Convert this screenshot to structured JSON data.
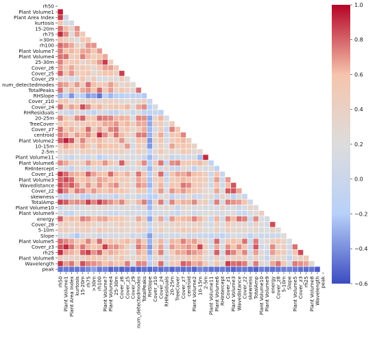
{
  "chart_data": {
    "type": "heatmap",
    "mask": "upper-triangle",
    "variables": [
      "rh50",
      "Plant Volume1",
      "Plant Area Index",
      "kurtosis",
      "15-20m",
      "rh75",
      ">30m",
      "rh100",
      "Plant Volume7",
      "Plant Volume4",
      "25-30m",
      "Cover_z6",
      "Cover_z5",
      "Cover_z9",
      "num_detectedmodes",
      "TotalPeaks",
      "RHSlope",
      "Cover_z10",
      "Cover_z4",
      "RHResiduals",
      "20-25m",
      "TreeCover",
      "Cover_z7",
      "centroid",
      "Plant Volume2",
      "10-15m",
      "2-5m",
      "Plant Volume11",
      "Plant Volume6",
      "RHIntercept",
      "Cover_z1",
      "Plant Volume3",
      "Wavedistance",
      "Cover_z2",
      "skewness",
      "TotalAmp",
      "Plant Volume10",
      "Plant Volume9",
      "energy",
      "Cover_z8",
      "5-10m",
      "Slope",
      "Plant Volume5",
      "Cover_z3",
      "rh25",
      "Plant Volume8",
      "Wavelength",
      "peak"
    ],
    "colorbar": {
      "min": -0.6,
      "max": 1.0,
      "ticks": [
        "1.0",
        "0.8",
        "0.6",
        "0.4",
        "0.2",
        "0.0",
        "−0.2",
        "−0.4",
        "−0.6"
      ],
      "tick_values": [
        1.0,
        0.8,
        0.6,
        0.4,
        0.2,
        0.0,
        -0.2,
        -0.4,
        -0.6
      ],
      "colormap": "coolwarm",
      "colors": [
        "#3b4cc0",
        "#b8d0f9",
        "#dddcdc",
        "#f5c4ac",
        "#b40426"
      ]
    },
    "rows": [
      [],
      [
        0.94
      ],
      [
        0.88,
        0.08
      ],
      [
        0.58,
        0.12,
        0.1
      ],
      [
        0.78,
        0.62,
        0.36,
        0.71
      ],
      [
        0.91,
        0.72,
        0.25,
        0.68,
        0.48
      ],
      [
        0.61,
        0.43,
        0.34,
        0.2,
        0.54,
        0.56
      ],
      [
        0.79,
        0.73,
        0.66,
        0.39,
        0.33,
        0.7,
        0.7
      ],
      [
        0.75,
        0.59,
        0.63,
        0.51,
        0.66,
        0.67,
        0.55,
        0.69
      ],
      [
        0.77,
        0.77,
        0.48,
        0.51,
        0.74,
        0.62,
        0.45,
        0.58,
        0.66
      ],
      [
        0.74,
        0.57,
        0.48,
        0.55,
        0.31,
        0.43,
        0.56,
        0.69,
        0.88,
        0.42
      ],
      [
        0.68,
        0.48,
        0.66,
        0.47,
        0.55,
        0.45,
        0.32,
        0.52,
        0.67,
        0.67,
        0.51
      ],
      [
        0.81,
        0.53,
        0.7,
        0.48,
        0.49,
        0.56,
        0.3,
        0.41,
        0.6,
        0.58,
        0.44,
        0.88
      ],
      [
        0.25,
        0.21,
        0.08,
        0.13,
        0.57,
        0.26,
        0.49,
        0.16,
        0.13,
        0.28,
        0.15,
        0.46,
        0.25
      ],
      [
        0.71,
        0.67,
        0.48,
        0.69,
        0.45,
        0.78,
        0.61,
        0.48,
        0.53,
        0.68,
        0.53,
        0.28,
        0.44,
        0.21
      ],
      [
        0.77,
        0.32,
        0.63,
        0.41,
        0.65,
        0.7,
        0.58,
        0.79,
        0.49,
        0.68,
        0.39,
        0.57,
        0.4,
        0.3,
        0.78
      ],
      [
        -0.3,
        -0.12,
        -0.38,
        -0.11,
        -0.21,
        -0.36,
        -0.32,
        -0.48,
        -0.15,
        -0.28,
        -0.19,
        -0.18,
        -0.09,
        -0.12,
        -0.12,
        -0.22
      ],
      [
        0.53,
        0.56,
        0.23,
        0.4,
        0.32,
        0.38,
        0.42,
        0.34,
        0.39,
        0.42,
        0.36,
        0.3,
        0.22,
        0.28,
        0.27,
        0.4,
        -0.02
      ],
      [
        0.79,
        0.47,
        0.67,
        0.61,
        0.84,
        0.71,
        0.49,
        0.63,
        0.41,
        0.52,
        0.57,
        0.47,
        0.63,
        0.2,
        0.66,
        0.72,
        -0.16,
        0.12
      ],
      [
        0.14,
        0.06,
        -0.08,
        0.27,
        0.11,
        0.02,
        -0.12,
        0.11,
        0.09,
        -0.07,
        -0.11,
        0.15,
        0.15,
        0.0,
        0.17,
        -0.1,
        -0.11,
        -0.02,
        -0.18
      ],
      [
        0.73,
        0.54,
        0.42,
        0.72,
        0.8,
        0.57,
        0.59,
        0.78,
        0.74,
        0.73,
        0.63,
        0.64,
        0.63,
        0.15,
        0.73,
        0.71,
        -0.33,
        0.33,
        0.63,
        0.12
      ],
      [
        0.5,
        0.59,
        0.49,
        0.43,
        0.44,
        0.53,
        0.53,
        0.51,
        0.66,
        0.65,
        0.7,
        0.55,
        0.63,
        0.43,
        0.66,
        0.65,
        -0.32,
        0.41,
        0.51,
        0.18,
        0.47
      ],
      [
        0.77,
        0.54,
        0.64,
        0.45,
        0.58,
        0.79,
        0.42,
        0.67,
        0.42,
        0.73,
        0.76,
        0.41,
        0.59,
        0.29,
        0.46,
        0.65,
        -0.28,
        0.11,
        0.47,
        -0.03,
        0.74,
        0.57
      ],
      [
        0.75,
        0.67,
        0.47,
        0.68,
        0.63,
        0.71,
        0.6,
        0.91,
        0.72,
        0.53,
        0.77,
        0.62,
        0.41,
        0.33,
        0.75,
        0.75,
        -0.29,
        0.31,
        0.65,
        0.06,
        0.56,
        0.56,
        0.73
      ],
      [
        0.82,
        0.94,
        0.84,
        0.5,
        0.73,
        0.51,
        0.56,
        0.62,
        0.46,
        0.4,
        0.5,
        0.7,
        0.35,
        0.14,
        0.6,
        0.54,
        -0.38,
        0.33,
        0.57,
        0.1,
        0.46,
        0.59,
        0.62,
        0.43
      ],
      [
        0.46,
        0.66,
        0.57,
        0.51,
        0.65,
        0.58,
        0.3,
        0.63,
        0.6,
        0.58,
        0.57,
        0.37,
        0.69,
        0.11,
        0.48,
        0.33,
        -0.37,
        0.21,
        0.41,
        0.21,
        0.67,
        0.49,
        0.59,
        0.52,
        0.38
      ],
      [
        0.37,
        0.42,
        0.43,
        0.26,
        0.44,
        0.47,
        0.36,
        0.47,
        0.33,
        0.43,
        0.44,
        0.43,
        0.3,
        0.13,
        0.47,
        0.33,
        -0.14,
        0.3,
        0.53,
        0.28,
        0.36,
        0.27,
        0.54,
        0.44,
        0.27,
        0.32
      ],
      [
        0.15,
        0.06,
        -0.07,
        0.16,
        0.11,
        0.0,
        0.22,
        -0.19,
        0.03,
        0.12,
        0.07,
        0.2,
        0.14,
        0.13,
        0.12,
        0.01,
        -0.27,
        0.06,
        0.2,
        0.29,
        -0.05,
        0.06,
        0.09,
        0.09,
        0.13,
        -0.26,
        0.92
      ],
      [
        0.73,
        0.65,
        0.47,
        0.39,
        0.44,
        0.69,
        0.57,
        0.57,
        0.7,
        0.59,
        0.4,
        0.81,
        0.47,
        0.14,
        0.51,
        0.72,
        -0.21,
        0.48,
        0.76,
        -0.02,
        0.71,
        0.73,
        0.51,
        0.52,
        0.54,
        0.62,
        0.39,
        -0.1
      ],
      [
        0.17,
        0.08,
        -0.14,
        0.26,
        0.12,
        -0.03,
        0.29,
        0.02,
        0.2,
        0.15,
        0.05,
        0.14,
        0.06,
        0.16,
        0.17,
        0.06,
        -0.27,
        0.27,
        0.09,
        0.34,
        0.0,
        -0.06,
        0.3,
        0.14,
        -0.09,
        0.16,
        0.12,
        0.27,
        -0.13
      ],
      [
        0.89,
        0.78,
        0.65,
        0.63,
        0.62,
        0.81,
        0.67,
        0.61,
        0.56,
        0.79,
        0.62,
        0.51,
        0.64,
        0.23,
        0.76,
        0.6,
        -0.21,
        0.38,
        0.78,
        -0.06,
        0.6,
        0.67,
        0.65,
        0.72,
        0.61,
        0.59,
        0.42,
        0.0,
        0.59,
        0.01
      ],
      [
        0.8,
        0.85,
        0.79,
        0.59,
        0.6,
        0.63,
        0.42,
        0.68,
        0.64,
        0.56,
        0.59,
        0.5,
        0.44,
        0.31,
        0.66,
        0.61,
        -0.24,
        0.45,
        0.56,
        -0.02,
        0.47,
        0.53,
        0.63,
        0.6,
        0.5,
        0.53,
        0.44,
        0.09,
        0.68,
        0.06,
        0.69
      ],
      [
        0.85,
        0.76,
        0.82,
        0.7,
        0.45,
        0.7,
        0.49,
        0.7,
        0.54,
        0.66,
        0.72,
        0.38,
        0.51,
        0.18,
        0.71,
        0.66,
        -0.28,
        0.31,
        0.63,
        0.11,
        0.58,
        0.5,
        0.76,
        0.72,
        0.51,
        0.52,
        0.33,
        0.04,
        0.6,
        0.05,
        0.61,
        0.83
      ],
      [
        0.87,
        0.74,
        0.6,
        0.75,
        0.71,
        0.61,
        0.69,
        0.61,
        0.52,
        0.63,
        0.6,
        0.6,
        0.46,
        0.2,
        0.58,
        0.49,
        -0.17,
        0.45,
        0.69,
        0.17,
        0.7,
        0.62,
        0.69,
        0.62,
        0.57,
        0.47,
        0.28,
        0.2,
        0.66,
        0.2,
        0.82,
        0.83,
        0.66
      ],
      [
        -0.03,
        -0.1,
        0.05,
        0.18,
        -0.16,
        -0.2,
        0.1,
        -0.06,
        0.02,
        0.02,
        -0.16,
        0.26,
        0.02,
        0.2,
        -0.02,
        -0.01,
        -0.2,
        -0.14,
        0.22,
        0.28,
        -0.15,
        0.13,
        -0.01,
        0.27,
        -0.01,
        0.04,
        0.26,
        0.29,
        -0.04,
        0.33,
        0.18,
        -0.12,
        0.17,
        -0.03
      ],
      [
        0.87,
        0.81,
        0.69,
        0.72,
        0.7,
        0.87,
        0.73,
        0.88,
        0.77,
        0.71,
        0.64,
        0.73,
        0.51,
        0.26,
        0.63,
        0.74,
        -0.3,
        0.41,
        0.75,
        0.04,
        0.73,
        0.56,
        0.64,
        0.63,
        0.72,
        0.42,
        0.46,
        0.04,
        0.74,
        0.13,
        0.75,
        0.7,
        0.68,
        0.6,
        0.07
      ],
      [
        0.02,
        0.2,
        0.16,
        0.08,
        0.19,
        0.22,
        0.28,
        0.23,
        0.29,
        0.18,
        0.17,
        0.17,
        0.23,
        0.13,
        0.03,
        0.28,
        -0.27,
        0.19,
        0.22,
        0.29,
        0.22,
        -0.03,
        0.27,
        0.21,
        0.17,
        0.23,
        0.14,
        0.15,
        0.14,
        0.35,
        0.14,
        0.18,
        -0.01,
        0.12,
        0.35,
        0.26
      ],
      [
        0.17,
        0.02,
        -0.06,
        0.21,
        0.12,
        0.2,
        0.18,
        0.16,
        0.08,
        0.04,
        0.03,
        0.17,
        0.07,
        0.14,
        0.12,
        0.11,
        -0.17,
        0.12,
        0.11,
        0.16,
        0.08,
        -0.02,
        0.22,
        0.18,
        0.07,
        0.12,
        0.18,
        0.24,
        0.11,
        0.14,
        0.19,
        0.23,
        0.02,
        0.0,
        0.14,
        0.23,
        0.43
      ],
      [
        0.81,
        0.53,
        0.62,
        0.58,
        0.74,
        0.7,
        0.61,
        0.66,
        0.67,
        0.58,
        0.59,
        0.53,
        0.4,
        0.23,
        0.66,
        0.48,
        -0.32,
        0.34,
        0.66,
        -0.03,
        0.69,
        0.6,
        0.62,
        0.63,
        0.73,
        0.63,
        0.37,
        -0.01,
        0.63,
        0.06,
        0.73,
        0.62,
        0.78,
        0.74,
        0.02,
        0.72,
        0.15,
        0.1
      ],
      [
        0.42,
        0.44,
        0.31,
        0.47,
        0.48,
        0.51,
        0.38,
        0.25,
        0.41,
        0.25,
        0.39,
        0.47,
        0.3,
        0.29,
        0.4,
        0.38,
        -0.05,
        0.26,
        0.36,
        0.27,
        0.35,
        0.43,
        0.35,
        0.3,
        0.35,
        0.42,
        0.13,
        0.09,
        0.39,
        0.2,
        0.52,
        0.35,
        0.29,
        0.3,
        0.1,
        0.4,
        0.22,
        0.1,
        0.85
      ],
      [
        0.44,
        0.45,
        0.34,
        0.43,
        0.45,
        0.48,
        0.28,
        0.56,
        0.39,
        0.37,
        0.35,
        0.38,
        0.31,
        0.25,
        0.51,
        0.38,
        -0.16,
        0.3,
        0.47,
        0.27,
        0.34,
        0.37,
        0.57,
        0.44,
        0.48,
        0.35,
        0.26,
        0.17,
        0.44,
        0.17,
        0.43,
        0.32,
        0.31,
        0.32,
        0.24,
        0.33,
        0.13,
        0.2,
        0.36,
        0.25
      ],
      [
        0.05,
        0.17,
        0.0,
        -0.22,
        0.11,
        0.17,
        0.13,
        0.0,
        0.07,
        0.09,
        0.11,
        0.16,
        0.2,
        0.01,
        0.11,
        -0.03,
        -0.35,
        0.13,
        -0.03,
        0.12,
        0.04,
        0.06,
        0.16,
        0.0,
        0.06,
        0.0,
        -0.01,
        -0.08,
        -0.01,
        -0.1,
        0.0,
        0.17,
        0.12,
        0.1,
        -0.1,
        0.12,
        0.02,
        0.06,
        -0.01,
        0.04,
        0.23
      ],
      [
        0.79,
        0.72,
        0.67,
        0.52,
        0.59,
        0.73,
        0.54,
        0.78,
        0.54,
        0.61,
        0.43,
        0.56,
        0.62,
        0.38,
        0.69,
        0.51,
        -0.29,
        0.34,
        0.63,
        0.1,
        0.63,
        0.61,
        0.74,
        0.64,
        0.68,
        0.51,
        0.36,
        0.08,
        0.79,
        0.11,
        0.55,
        0.61,
        0.48,
        0.77,
        0.08,
        0.75,
        0.16,
        0.26,
        0.46,
        0.57,
        0.37,
        0.14
      ],
      [
        0.83,
        0.92,
        0.77,
        0.62,
        0.76,
        0.63,
        0.56,
        0.62,
        0.87,
        0.69,
        0.71,
        0.63,
        0.41,
        0.14,
        0.76,
        0.64,
        -0.36,
        0.4,
        0.67,
        0.05,
        0.69,
        0.62,
        0.65,
        0.7,
        0.62,
        0.86,
        0.45,
        0.07,
        0.66,
        0.16,
        0.71,
        0.58,
        0.71,
        0.58,
        -0.02,
        0.82,
        0.08,
        0.15,
        0.72,
        0.31,
        0.45,
        0.08,
        0.77
      ],
      [
        0.91,
        0.67,
        0.64,
        0.55,
        0.8,
        0.87,
        0.7,
        0.81,
        0.6,
        0.65,
        0.62,
        0.49,
        0.43,
        0.15,
        0.65,
        0.6,
        -0.31,
        0.44,
        0.74,
        0.17,
        0.5,
        0.66,
        0.65,
        0.74,
        0.69,
        0.65,
        0.41,
        0.13,
        0.81,
        0.1,
        0.81,
        0.73,
        0.55,
        0.73,
        0.11,
        0.68,
        0.27,
        0.04,
        0.68,
        0.57,
        0.49,
        0.05,
        0.6,
        0.86
      ],
      [
        0.46,
        0.29,
        0.39,
        0.39,
        0.33,
        0.54,
        0.55,
        0.44,
        0.49,
        0.26,
        0.45,
        0.54,
        0.28,
        0.29,
        0.42,
        0.49,
        -0.18,
        0.26,
        0.32,
        0.06,
        0.38,
        0.39,
        0.38,
        0.5,
        0.51,
        0.54,
        0.24,
        0.14,
        0.42,
        0.14,
        0.38,
        0.39,
        0.43,
        0.39,
        0.14,
        0.41,
        0.18,
        0.01,
        0.35,
        0.34,
        0.27,
        -0.04,
        0.31,
        0.38,
        0.49
      ],
      [
        0.9,
        0.68,
        0.76,
        0.54,
        0.84,
        0.73,
        0.71,
        0.67,
        0.6,
        0.64,
        0.57,
        0.55,
        0.75,
        0.21,
        0.74,
        0.72,
        -0.2,
        0.38,
        0.78,
        0.07,
        0.53,
        0.5,
        0.81,
        0.76,
        0.65,
        0.69,
        0.48,
        0.16,
        0.56,
        0.27,
        0.88,
        0.78,
        0.8,
        0.75,
        0.23,
        0.75,
        0.3,
        0.16,
        0.66,
        0.77,
        0.57,
        0.12,
        0.75,
        0.71,
        0.67,
        0.29
      ],
      [
        -0.48,
        -0.45,
        -0.48,
        -0.46,
        -0.47,
        -0.41,
        -0.34,
        -0.46,
        -0.42,
        -0.52,
        -0.48,
        -0.53,
        -0.5,
        -0.52,
        -0.52,
        -0.48,
        -0.51,
        -0.47,
        -0.49,
        -0.45,
        -0.52,
        -0.47,
        -0.5,
        -0.47,
        -0.52,
        -0.42,
        -0.44,
        -0.48,
        -0.48,
        -0.45,
        -0.48,
        -0.52,
        -0.48,
        -0.46,
        -0.5,
        -0.53,
        -0.44,
        -0.46,
        -0.49,
        -0.47,
        -0.44,
        -0.43,
        -0.46,
        -0.49,
        -0.5,
        -0.47,
        -0.55
      ]
    ]
  }
}
